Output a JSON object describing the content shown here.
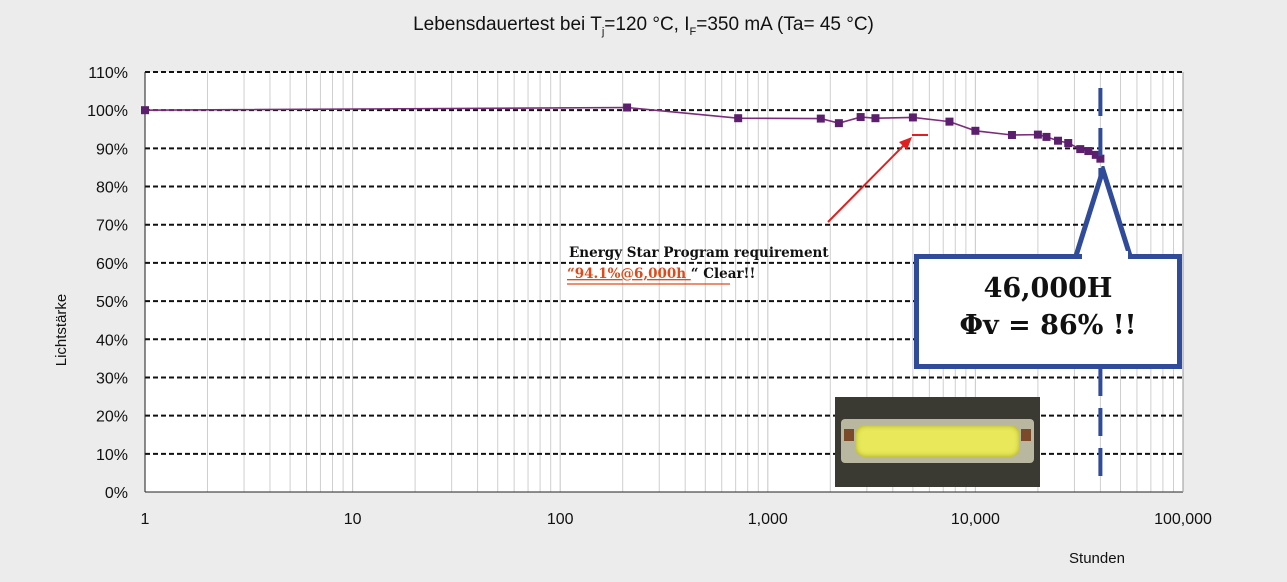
{
  "title": {
    "prefix": "Lebensdauertest bei T",
    "tj_sub": "j",
    "mid": "=120 °C, I",
    "if_sub": "F",
    "suffix": "=350 mA (Ta= 45 °C)"
  },
  "chart_data": {
    "type": "line",
    "x_scale": "log",
    "xlim": [
      1,
      100000
    ],
    "ylim": [
      0,
      110
    ],
    "xlabel": "Stunden",
    "ylabel": "Lichtstärke",
    "grid": true,
    "x_ticks": [
      1,
      10,
      100,
      1000,
      10000,
      100000
    ],
    "x_tick_labels": [
      "1",
      "10",
      "100",
      "1,000",
      "10,000",
      "100,000"
    ],
    "y_ticks": [
      0,
      10,
      20,
      30,
      40,
      50,
      60,
      70,
      80,
      90,
      100,
      110
    ],
    "y_tick_labels": [
      "0%",
      "10%",
      "20%",
      "30%",
      "40%",
      "50%",
      "60%",
      "70%",
      "80%",
      "90%",
      "100%",
      "110%"
    ],
    "series": [
      {
        "color": "#7b2d7b",
        "marker_color": "#5c1f6e",
        "x": [
          1,
          210,
          720,
          1800,
          2200,
          2800,
          3300,
          5000,
          7500,
          10000,
          15000,
          20000,
          22000,
          25000,
          28000,
          32000,
          35000,
          38000,
          40000
        ],
        "y": [
          100,
          100.7,
          97.9,
          97.8,
          96.6,
          98.2,
          97.9,
          98.1,
          97.0,
          94.6,
          93.5,
          93.6,
          93.0,
          92.0,
          91.4,
          89.8,
          89.3,
          88.3,
          87.3
        ]
      }
    ],
    "reference_line": {
      "x": 40000,
      "color": "#2f4b9a",
      "style": "dashed"
    }
  },
  "annotations": {
    "energy_star": {
      "line1": "Energy Star Program requirement",
      "highlight": "“94.1%@6,000h ",
      "rest": "“ Clear!!",
      "arrow_color": "#e02020",
      "highlight_color": "#e04a1a"
    },
    "callout": {
      "line1": "46,000H",
      "line2": "Φv = 86% !!",
      "border_color": "#2f4b9a"
    }
  },
  "photo": {
    "name": "led-module-photo"
  }
}
